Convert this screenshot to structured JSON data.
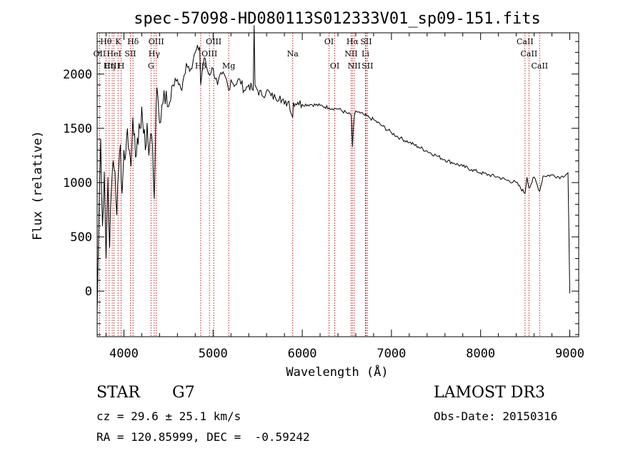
{
  "chart_data": {
    "type": "line",
    "title": "spec-57098-HD080113S012333V01_sp09-151.fits",
    "xlabel": "Wavelength (Å)",
    "ylabel": "Flux (relative)",
    "xlim": [
      3700,
      9100
    ],
    "ylim": [
      -420,
      2380
    ],
    "x_ticks": [
      4000,
      5000,
      6000,
      7000,
      8000,
      9000
    ],
    "y_ticks": [
      0,
      500,
      1000,
      1500,
      2000
    ],
    "x_tick_labels": [
      "4000",
      "5000",
      "6000",
      "7000",
      "8000",
      "9000"
    ],
    "y_tick_labels": [
      "0",
      "500",
      "1000",
      "1500",
      "2000"
    ],
    "series": [
      {
        "name": "spectrum",
        "x": [
          3700,
          3720,
          3740,
          3760,
          3780,
          3800,
          3820,
          3840,
          3860,
          3880,
          3900,
          3920,
          3940,
          3960,
          3980,
          4000,
          4020,
          4040,
          4060,
          4080,
          4100,
          4120,
          4140,
          4160,
          4180,
          4200,
          4220,
          4240,
          4260,
          4280,
          4300,
          4320,
          4340,
          4360,
          4380,
          4400,
          4450,
          4500,
          4550,
          4600,
          4650,
          4700,
          4750,
          4800,
          4850,
          4861,
          4880,
          4900,
          4950,
          5000,
          5050,
          5100,
          5150,
          5175,
          5200,
          5250,
          5300,
          5350,
          5400,
          5450,
          5460,
          5470,
          5500,
          5550,
          5600,
          5650,
          5700,
          5750,
          5800,
          5850,
          5893,
          5900,
          5950,
          6000,
          6100,
          6200,
          6300,
          6400,
          6500,
          6550,
          6563,
          6580,
          6600,
          6650,
          6700,
          6750,
          6800,
          6900,
          7000,
          7100,
          7200,
          7300,
          7400,
          7500,
          7600,
          7700,
          7800,
          7900,
          8000,
          8100,
          8200,
          8300,
          8400,
          8498,
          8520,
          8542,
          8600,
          8662,
          8700,
          8800,
          8900,
          8980,
          9000
        ],
        "y": [
          -200,
          700,
          1400,
          600,
          1100,
          300,
          1050,
          400,
          950,
          1200,
          1100,
          700,
          1100,
          1350,
          900,
          1300,
          1250,
          1500,
          1300,
          1150,
          1600,
          1450,
          1250,
          1350,
          1500,
          1700,
          1450,
          1300,
          1550,
          1250,
          1450,
          1350,
          850,
          1700,
          1800,
          1550,
          1850,
          1700,
          1900,
          1950,
          1850,
          2100,
          2050,
          2200,
          2250,
          1900,
          2050,
          2150,
          2000,
          2050,
          1900,
          2000,
          1950,
          1850,
          1950,
          1900,
          1950,
          1850,
          1900,
          1850,
          2450,
          1900,
          1850,
          1800,
          1850,
          1800,
          1780,
          1800,
          1720,
          1750,
          1600,
          1740,
          1740,
          1720,
          1720,
          1710,
          1690,
          1680,
          1640,
          1620,
          1330,
          1590,
          1660,
          1640,
          1620,
          1600,
          1580,
          1520,
          1460,
          1410,
          1370,
          1330,
          1290,
          1250,
          1210,
          1180,
          1150,
          1120,
          1090,
          1070,
          1050,
          1020,
          1000,
          900,
          1050,
          950,
          1050,
          920,
          1060,
          1070,
          1050,
          1090,
          -20
        ]
      }
    ],
    "line_markers": [
      {
        "wavelength": 3727,
        "label": "OII",
        "row": 2
      },
      {
        "wavelength": 3798,
        "label": "Hθ",
        "row": 1
      },
      {
        "wavelength": 3835,
        "label": "Hη",
        "row": 3
      },
      {
        "wavelength": 3869,
        "label": "CIII",
        "row": 3
      },
      {
        "wavelength": 3889,
        "label": "HeI",
        "row": 2
      },
      {
        "wavelength": 3934,
        "label": "K",
        "row": 1
      },
      {
        "wavelength": 3969,
        "label": "H",
        "row": 3
      },
      {
        "wavelength": 4072,
        "label": "SII",
        "row": 2
      },
      {
        "wavelength": 4102,
        "label": "Hδ",
        "row": 1
      },
      {
        "wavelength": 4304,
        "label": "G",
        "row": 3
      },
      {
        "wavelength": 4340,
        "label": "Hγ",
        "row": 2
      },
      {
        "wavelength": 4363,
        "label": "OIII",
        "row": 1
      },
      {
        "wavelength": 4861,
        "label": "Hβ",
        "row": 3
      },
      {
        "wavelength": 4959,
        "label": "OIII",
        "row": 2
      },
      {
        "wavelength": 5007,
        "label": "OIII",
        "row": 1
      },
      {
        "wavelength": 5175,
        "label": "Mg",
        "row": 3
      },
      {
        "wavelength": 5893,
        "label": "Na",
        "row": 2
      },
      {
        "wavelength": 6300,
        "label": "OI",
        "row": 1
      },
      {
        "wavelength": 6364,
        "label": "OI",
        "row": 3
      },
      {
        "wavelength": 6548,
        "label": "NII",
        "row": 2
      },
      {
        "wavelength": 6563,
        "label": "Hα",
        "row": 1
      },
      {
        "wavelength": 6583,
        "label": "NII",
        "row": 3
      },
      {
        "wavelength": 6708,
        "label": "Li",
        "row": 2
      },
      {
        "wavelength": 6716,
        "label": "SII",
        "row": 1
      },
      {
        "wavelength": 6731,
        "label": "SII",
        "row": 3
      },
      {
        "wavelength": 8498,
        "label": "CaII",
        "row": 1
      },
      {
        "wavelength": 8542,
        "label": "CaII",
        "row": 2
      },
      {
        "wavelength": 8662,
        "label": "CaII",
        "row": 3
      }
    ]
  },
  "info": {
    "object_class": "STAR",
    "subclass": "G7",
    "redshift": "cz = 29.6 ± 25.1 km/s",
    "coords": "RA = 120.85999, DEC =  -0.59242",
    "survey": "LAMOST DR3",
    "obs_date": "Obs-Date: 20150316"
  }
}
